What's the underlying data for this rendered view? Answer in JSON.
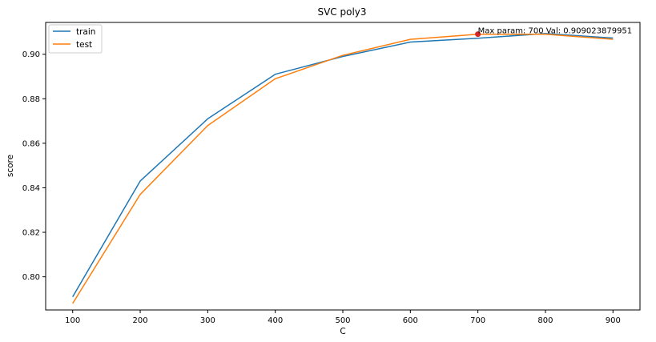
{
  "chart_data": {
    "type": "line",
    "title": "SVC poly3",
    "xlabel": "C",
    "ylabel": "score",
    "x": [
      100,
      200,
      300,
      400,
      500,
      600,
      700,
      800,
      900
    ],
    "xticks": [
      "100",
      "200",
      "300",
      "400",
      "500",
      "600",
      "700",
      "800",
      "900"
    ],
    "yticks": [
      "0.80",
      "0.82",
      "0.84",
      "0.86",
      "0.88",
      "0.90"
    ],
    "ytick_values": [
      0.8,
      0.82,
      0.84,
      0.86,
      0.88,
      0.9
    ],
    "xlim": [
      60,
      940
    ],
    "ylim": [
      0.7851,
      0.9143
    ],
    "grid": false,
    "legend_position": "top-left",
    "series": [
      {
        "name": "train",
        "color": "#1f77b4",
        "values": [
          0.791,
          0.843,
          0.871,
          0.891,
          0.899,
          0.9055,
          0.9072,
          0.9093,
          0.9073
        ]
      },
      {
        "name": "test",
        "color": "#ff7f0e",
        "values": [
          0.788,
          0.837,
          0.868,
          0.889,
          0.8995,
          0.9067,
          0.90902,
          0.909,
          0.9067
        ]
      }
    ],
    "annotation": {
      "text": "Max param: 700 Val: 0.909023879951",
      "x": 700,
      "y": 0.909023879951,
      "marker_color": "#d62728"
    }
  }
}
